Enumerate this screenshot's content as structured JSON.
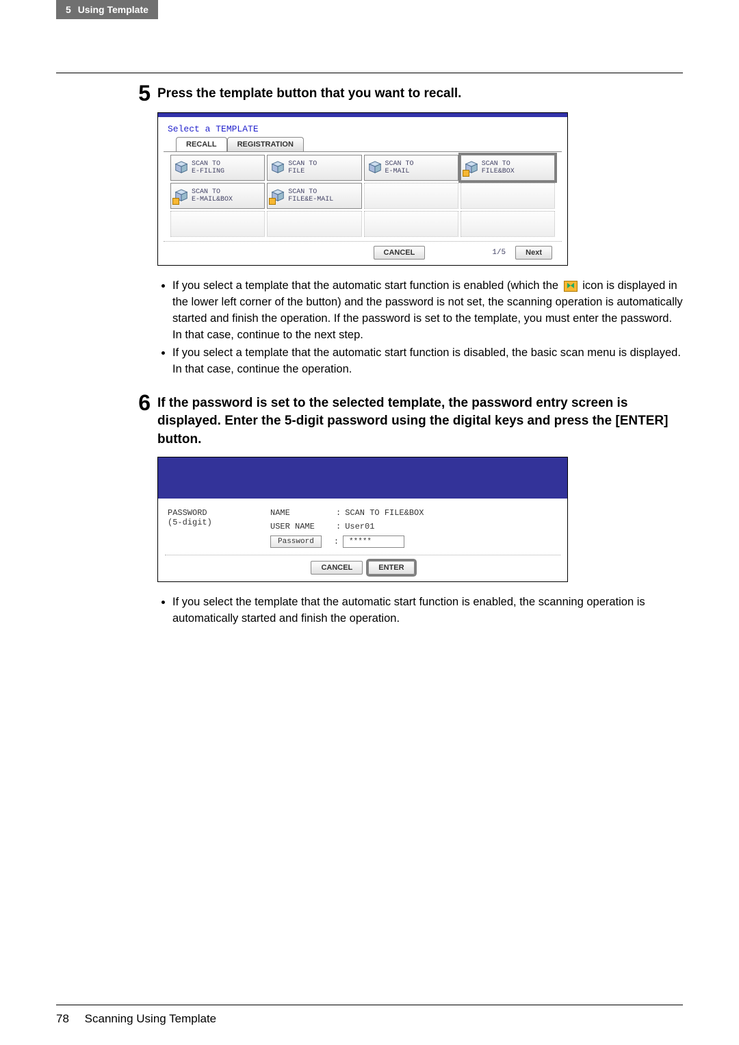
{
  "header": {
    "chapter_num": "5",
    "chapter_title": "Using Template"
  },
  "step5": {
    "num": "5",
    "title": "Press the template button that you want to recall.",
    "screen": {
      "title": "Select a TEMPLATE",
      "tabs": {
        "recall": "RECALL",
        "registration": "REGISTRATION"
      },
      "buttons": [
        {
          "line1": "SCAN TO",
          "line2": "E-FILING",
          "autostart": false,
          "highlighted": false
        },
        {
          "line1": "SCAN TO",
          "line2": "FILE",
          "autostart": false,
          "highlighted": false
        },
        {
          "line1": "SCAN TO",
          "line2": "E-MAIL",
          "autostart": false,
          "highlighted": false
        },
        {
          "line1": "SCAN TO",
          "line2": "FILE&BOX",
          "autostart": true,
          "highlighted": true
        },
        {
          "line1": "SCAN TO",
          "line2": "E-MAIL&BOX",
          "autostart": true,
          "highlighted": false
        },
        {
          "line1": "SCAN TO",
          "line2": "FILE&E-MAIL",
          "autostart": true,
          "highlighted": false
        }
      ],
      "cancel": "CANCEL",
      "page": "1/5",
      "next": "Next"
    },
    "bullets": [
      "If you select a template that the automatic start function is enabled (which the __ICON__ icon is displayed in the lower left corner of the button) and the password is not set, the scanning operation is automatically started and finish the operation.  If the password is set to the template, you must enter the password.  In that case, continue to the next step.",
      "If you select a template that the automatic start function is disabled, the basic scan menu is displayed.  In that case, continue the operation."
    ]
  },
  "step6": {
    "num": "6",
    "title": "If the password is set to the selected template, the password entry screen is displayed.  Enter the 5-digit password using the digital keys and press the [ENTER] button.",
    "screen": {
      "left_label1": "PASSWORD",
      "left_label2": "(5-digit)",
      "name_label": "NAME",
      "name_value": "SCAN TO FILE&BOX",
      "user_label": "USER NAME",
      "user_value": "User01",
      "pwd_button": "Password",
      "pwd_value": "*****",
      "cancel": "CANCEL",
      "enter": "ENTER"
    },
    "bullets": [
      "If you select the template that the automatic start function is enabled, the scanning operation is automatically started and finish the operation."
    ]
  },
  "footer": {
    "page": "78",
    "title": "Scanning Using Template"
  }
}
